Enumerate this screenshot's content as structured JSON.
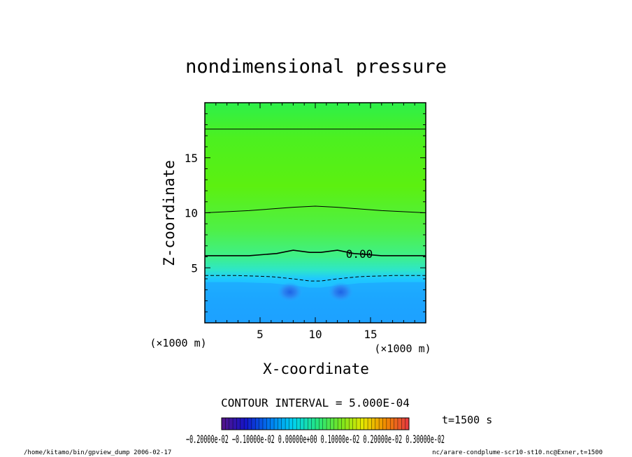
{
  "chart_data": {
    "type": "heatmap",
    "title": "nondimensional pressure",
    "xlabel": "X-coordinate",
    "ylabel": "Z-coordinate",
    "x_unit": "(×1000 m)",
    "y_unit": "(×1000 m)",
    "xlim": [
      0,
      20
    ],
    "ylim": [
      0,
      20
    ],
    "xticks": [
      5,
      10,
      15
    ],
    "yticks": [
      5,
      10,
      15
    ],
    "contour_interval_text": "CONTOUR INTERVAL = 5.000E-04",
    "time_text": "t=1500 s",
    "colorbar": {
      "range": [
        -0.002,
        0.003
      ],
      "tick_text": "−0.20000e-02 −0.10000e-02 0.00000e+00 0.10000e-02 0.20000e-02 0.30000e-02"
    },
    "contour_label": "0.00",
    "contours": [
      {
        "level": 0.0005,
        "style": "solid",
        "points": [
          [
            0,
            17.6
          ],
          [
            5,
            17.6
          ],
          [
            10,
            17.6
          ],
          [
            15,
            17.6
          ],
          [
            20,
            17.6
          ]
        ]
      },
      {
        "level": 0.0,
        "style": "solid",
        "points": [
          [
            0,
            10.0
          ],
          [
            4,
            10.2
          ],
          [
            8,
            10.5
          ],
          [
            10,
            10.6
          ],
          [
            12,
            10.5
          ],
          [
            16,
            10.2
          ],
          [
            20,
            10.0
          ]
        ]
      },
      {
        "level": -0.0005,
        "style": "solid",
        "points": [
          [
            0,
            6.1
          ],
          [
            4,
            6.1
          ],
          [
            6.5,
            6.3
          ],
          [
            8,
            6.6
          ],
          [
            9.5,
            6.4
          ],
          [
            10.5,
            6.4
          ],
          [
            12,
            6.6
          ],
          [
            13.5,
            6.3
          ],
          [
            16,
            6.1
          ],
          [
            20,
            6.1
          ]
        ]
      },
      {
        "level": -0.001,
        "style": "dashed",
        "points": [
          [
            0,
            4.3
          ],
          [
            3,
            4.3
          ],
          [
            6,
            4.2
          ],
          [
            8,
            4.0
          ],
          [
            9.5,
            3.8
          ],
          [
            10.5,
            3.8
          ],
          [
            12,
            4.0
          ],
          [
            14,
            4.2
          ],
          [
            17,
            4.3
          ],
          [
            20,
            4.3
          ]
        ]
      }
    ],
    "vortices": [
      {
        "x": 7.7,
        "z": 2.8
      },
      {
        "x": 12.3,
        "z": 2.8
      }
    ]
  },
  "footer": {
    "left": "/home/kitamo/bin/gpview_dump  2006-02-17",
    "right": "nc/arare-condplume-scr10-st10.nc@Exner,t=1500"
  }
}
